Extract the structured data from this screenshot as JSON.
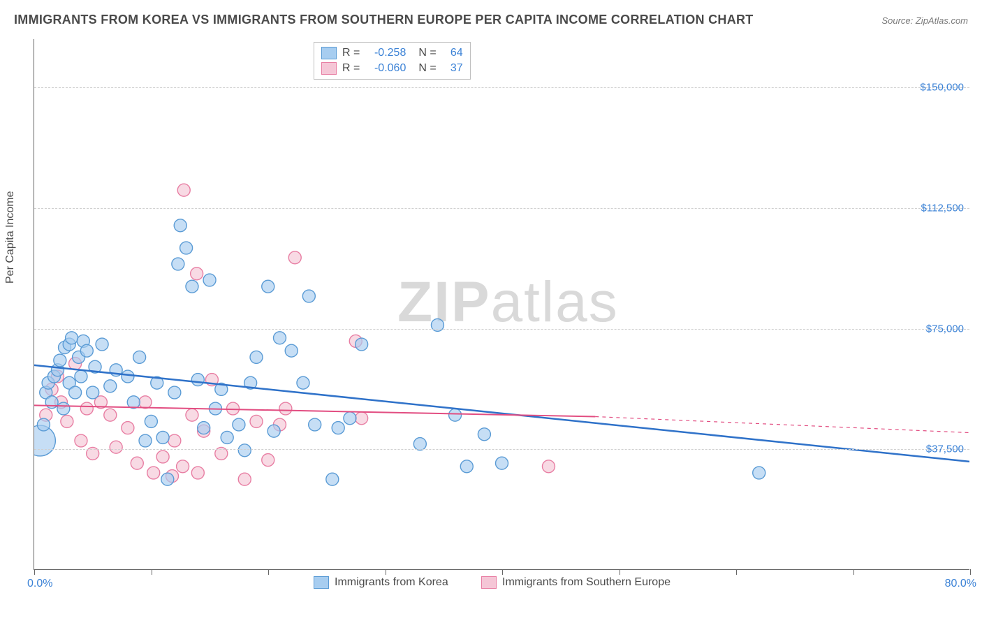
{
  "title": "IMMIGRANTS FROM KOREA VS IMMIGRANTS FROM SOUTHERN EUROPE PER CAPITA INCOME CORRELATION CHART",
  "source": "Source: ZipAtlas.com",
  "ylabel": "Per Capita Income",
  "watermark_zip": "ZIP",
  "watermark_atlas": "atlas",
  "chart": {
    "type": "scatter",
    "xlim": [
      0,
      80
    ],
    "ylim": [
      0,
      165000
    ],
    "y_ticks": [
      37500,
      75000,
      112500,
      150000
    ],
    "y_tick_labels": [
      "$37,500",
      "$75,000",
      "$112,500",
      "$150,000"
    ],
    "x_ticks": [
      0,
      10,
      20,
      30,
      40,
      50,
      60,
      70,
      80
    ],
    "x_min_label": "0.0%",
    "x_max_label": "80.0%",
    "grid_color": "#d0d0d0",
    "axis_color": "#666666",
    "background_color": "#ffffff",
    "watermark_color": "#d9d9d9",
    "series": [
      {
        "name": "Immigrants from Korea",
        "color_fill": "#a7cdf0",
        "color_stroke": "#5a9bd5",
        "trend_color": "#2f72c9",
        "trend_width": 2.5,
        "marker_r": 9,
        "R": "-0.258",
        "N": "64",
        "trend": {
          "x1": 0,
          "y1": 63500,
          "x2": 80,
          "y2": 33500
        },
        "points": [
          {
            "x": 0.5,
            "y": 40000,
            "r": 22
          },
          {
            "x": 0.8,
            "y": 45000
          },
          {
            "x": 1.0,
            "y": 55000
          },
          {
            "x": 1.2,
            "y": 58000
          },
          {
            "x": 1.5,
            "y": 52000
          },
          {
            "x": 1.7,
            "y": 60000
          },
          {
            "x": 2.0,
            "y": 62000
          },
          {
            "x": 2.2,
            "y": 65000
          },
          {
            "x": 2.5,
            "y": 50000
          },
          {
            "x": 2.6,
            "y": 69000
          },
          {
            "x": 3.0,
            "y": 58000
          },
          {
            "x": 3.0,
            "y": 70000
          },
          {
            "x": 3.2,
            "y": 72000
          },
          {
            "x": 3.5,
            "y": 55000
          },
          {
            "x": 3.8,
            "y": 66000
          },
          {
            "x": 4.0,
            "y": 60000
          },
          {
            "x": 4.2,
            "y": 71000
          },
          {
            "x": 4.5,
            "y": 68000
          },
          {
            "x": 5.0,
            "y": 55000
          },
          {
            "x": 5.2,
            "y": 63000
          },
          {
            "x": 5.8,
            "y": 70000
          },
          {
            "x": 6.5,
            "y": 57000
          },
          {
            "x": 7.0,
            "y": 62000
          },
          {
            "x": 8.0,
            "y": 60000
          },
          {
            "x": 8.5,
            "y": 52000
          },
          {
            "x": 9.0,
            "y": 66000
          },
          {
            "x": 9.5,
            "y": 40000
          },
          {
            "x": 10.0,
            "y": 46000
          },
          {
            "x": 10.5,
            "y": 58000
          },
          {
            "x": 11.0,
            "y": 41000
          },
          {
            "x": 11.4,
            "y": 28000
          },
          {
            "x": 12.0,
            "y": 55000
          },
          {
            "x": 12.3,
            "y": 95000
          },
          {
            "x": 12.5,
            "y": 107000
          },
          {
            "x": 13.0,
            "y": 100000
          },
          {
            "x": 13.5,
            "y": 88000
          },
          {
            "x": 14.0,
            "y": 59000
          },
          {
            "x": 14.5,
            "y": 44000
          },
          {
            "x": 15.0,
            "y": 90000
          },
          {
            "x": 15.5,
            "y": 50000
          },
          {
            "x": 16.0,
            "y": 56000
          },
          {
            "x": 16.5,
            "y": 41000
          },
          {
            "x": 17.5,
            "y": 45000
          },
          {
            "x": 18.0,
            "y": 37000
          },
          {
            "x": 18.5,
            "y": 58000
          },
          {
            "x": 19.0,
            "y": 66000
          },
          {
            "x": 20.0,
            "y": 88000
          },
          {
            "x": 20.5,
            "y": 43000
          },
          {
            "x": 21.0,
            "y": 72000
          },
          {
            "x": 22.0,
            "y": 68000
          },
          {
            "x": 23.0,
            "y": 58000
          },
          {
            "x": 23.5,
            "y": 85000
          },
          {
            "x": 24.0,
            "y": 45000
          },
          {
            "x": 25.5,
            "y": 28000
          },
          {
            "x": 26.0,
            "y": 44000
          },
          {
            "x": 27.0,
            "y": 47000
          },
          {
            "x": 33.0,
            "y": 39000
          },
          {
            "x": 34.5,
            "y": 76000
          },
          {
            "x": 36.0,
            "y": 48000
          },
          {
            "x": 37.0,
            "y": 32000
          },
          {
            "x": 38.5,
            "y": 42000
          },
          {
            "x": 40.0,
            "y": 33000
          },
          {
            "x": 62.0,
            "y": 30000
          },
          {
            "x": 28.0,
            "y": 70000
          }
        ]
      },
      {
        "name": "Immigrants from Southern Europe",
        "color_fill": "#f5c6d6",
        "color_stroke": "#e87ea3",
        "trend_color": "#e24d81",
        "trend_width": 2,
        "marker_r": 9,
        "R": "-0.060",
        "N": "37",
        "trend_solid": {
          "x1": 0,
          "y1": 51000,
          "x2": 48,
          "y2": 47500
        },
        "trend_dash": {
          "x1": 48,
          "y1": 47500,
          "x2": 80,
          "y2": 42500
        },
        "points": [
          {
            "x": 1.0,
            "y": 48000
          },
          {
            "x": 1.5,
            "y": 56000
          },
          {
            "x": 2.0,
            "y": 60000
          },
          {
            "x": 2.3,
            "y": 52000
          },
          {
            "x": 2.8,
            "y": 46000
          },
          {
            "x": 3.5,
            "y": 64000
          },
          {
            "x": 4.0,
            "y": 40000
          },
          {
            "x": 4.5,
            "y": 50000
          },
          {
            "x": 5.0,
            "y": 36000
          },
          {
            "x": 5.7,
            "y": 52000
          },
          {
            "x": 6.5,
            "y": 48000
          },
          {
            "x": 7.0,
            "y": 38000
          },
          {
            "x": 8.0,
            "y": 44000
          },
          {
            "x": 8.8,
            "y": 33000
          },
          {
            "x": 9.5,
            "y": 52000
          },
          {
            "x": 10.2,
            "y": 30000
          },
          {
            "x": 11.0,
            "y": 35000
          },
          {
            "x": 11.8,
            "y": 29000
          },
          {
            "x": 12.0,
            "y": 40000
          },
          {
            "x": 12.7,
            "y": 32000
          },
          {
            "x": 12.8,
            "y": 118000
          },
          {
            "x": 13.5,
            "y": 48000
          },
          {
            "x": 13.9,
            "y": 92000
          },
          {
            "x": 14.0,
            "y": 30000
          },
          {
            "x": 14.5,
            "y": 43000
          },
          {
            "x": 15.2,
            "y": 59000
          },
          {
            "x": 16.0,
            "y": 36000
          },
          {
            "x": 17.0,
            "y": 50000
          },
          {
            "x": 18.0,
            "y": 28000
          },
          {
            "x": 19.0,
            "y": 46000
          },
          {
            "x": 20.0,
            "y": 34000
          },
          {
            "x": 21.0,
            "y": 45000
          },
          {
            "x": 22.3,
            "y": 97000
          },
          {
            "x": 21.5,
            "y": 50000
          },
          {
            "x": 27.5,
            "y": 71000
          },
          {
            "x": 28.0,
            "y": 47000
          },
          {
            "x": 44.0,
            "y": 32000
          }
        ]
      }
    ]
  }
}
